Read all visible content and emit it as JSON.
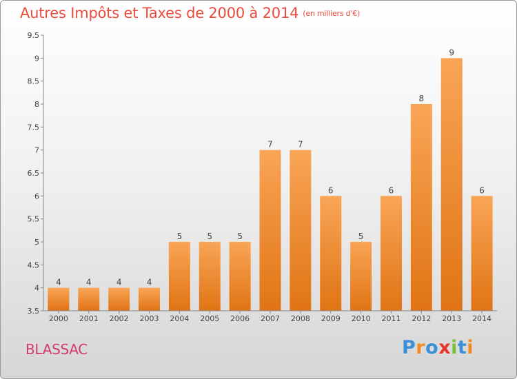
{
  "chart_data": {
    "type": "bar",
    "title": "Autres Impôts et Taxes de 2000 à 2014",
    "unit": "(en milliers d'€)",
    "categories": [
      "2000",
      "2001",
      "2002",
      "2003",
      "2004",
      "2005",
      "2006",
      "2007",
      "2008",
      "2009",
      "2010",
      "2011",
      "2012",
      "2013",
      "2014"
    ],
    "values": [
      4,
      4,
      4,
      4,
      5,
      5,
      5,
      7,
      7,
      6,
      5,
      6,
      8,
      9,
      6
    ],
    "ylim": [
      3.5,
      9.5
    ],
    "yticks": [
      "3.5",
      "4",
      "4.5",
      "5",
      "5.5",
      "6",
      "6.5",
      "7",
      "7.5",
      "8",
      "8.5",
      "9",
      "9.5"
    ],
    "grid": false,
    "bar_color": "#f0862a"
  },
  "commune": "BLASSAC",
  "logo": {
    "text": "Proxiti",
    "colors": [
      "#3b8fd6",
      "#f08a24",
      "#3b8fd6",
      "#e8352b",
      "#7bbf3a",
      "#3b8fd6",
      "#f08a24"
    ]
  }
}
